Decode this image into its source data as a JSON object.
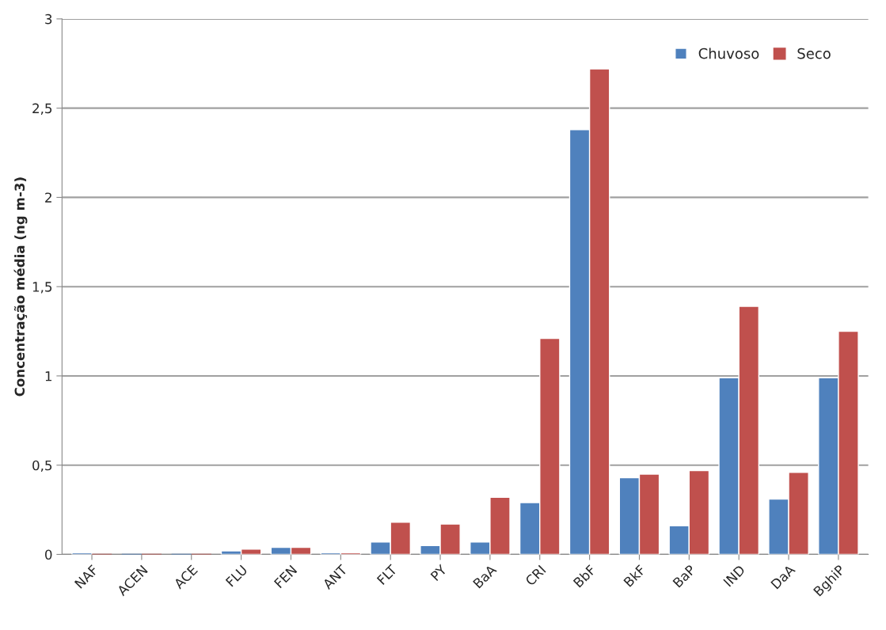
{
  "chart_data": {
    "type": "bar",
    "ylabel": "Concentração média (ng m-3)",
    "categories": [
      "NAF",
      "ACEN",
      "ACE",
      "FLU",
      "FEN",
      "ANT",
      "FLT",
      "PY",
      "BaA",
      "CRI",
      "BbF",
      "BkF",
      "BaP",
      "IND",
      "DaA",
      "BghiP"
    ],
    "series": [
      {
        "name": "Chuvoso",
        "color": "#4f81bd",
        "values": [
          0.01,
          0,
          0,
          0.02,
          0.04,
          0.01,
          0.07,
          0.05,
          0.07,
          0.29,
          2.38,
          0.43,
          0.16,
          0.99,
          0.31,
          0.99
        ]
      },
      {
        "name": "Seco",
        "color": "#c0504d",
        "values": [
          0,
          0,
          0,
          0.03,
          0.04,
          0.01,
          0.18,
          0.17,
          0.32,
          1.21,
          2.72,
          0.45,
          0.47,
          1.39,
          0.46,
          1.25
        ]
      }
    ],
    "ylim": [
      0,
      3
    ],
    "yticks": [
      0,
      {
        "value": 0.5,
        "label": "0,5"
      },
      1,
      {
        "value": 1.5,
        "label": "1,5"
      },
      2,
      {
        "value": 2.5,
        "label": "2,5"
      },
      3
    ],
    "grid": "y",
    "legend": "top right"
  }
}
